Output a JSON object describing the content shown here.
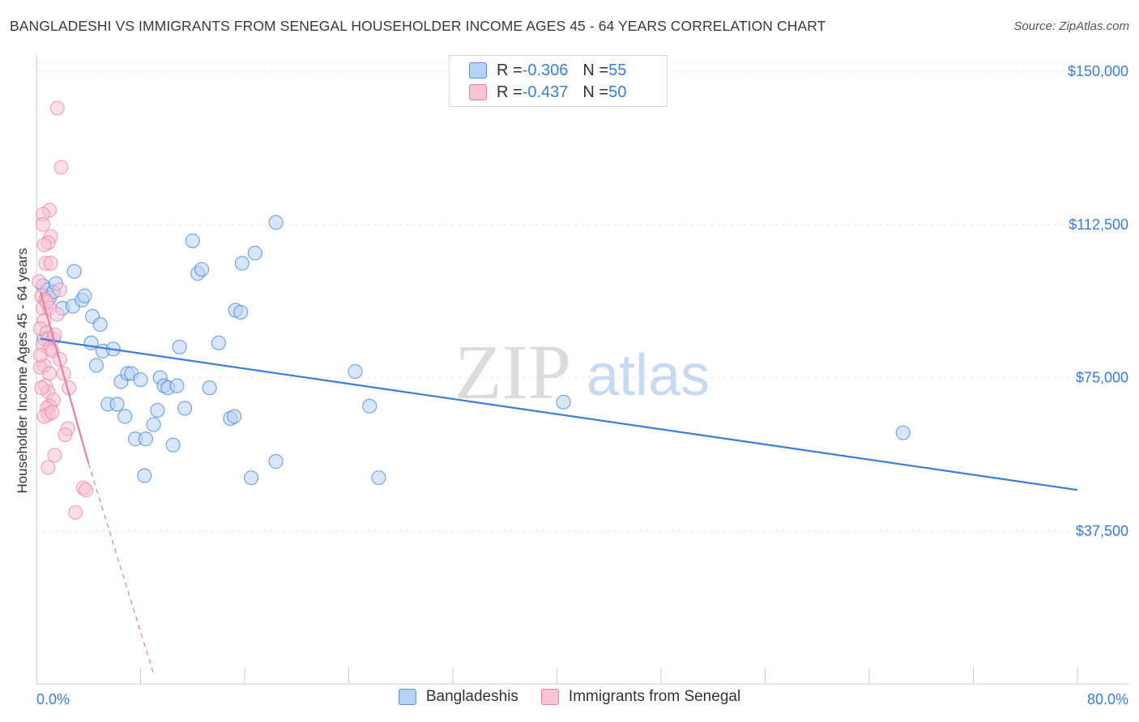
{
  "header": {
    "title": "BANGLADESHI VS IMMIGRANTS FROM SENEGAL HOUSEHOLDER INCOME AGES 45 - 64 YEARS CORRELATION CHART",
    "source": "Source: ZipAtlas.com"
  },
  "stats": [
    {
      "r_label": "R = ",
      "r_value": "-0.306",
      "n_label": "N = ",
      "n_value": "55",
      "color": "#5b8fe0",
      "fill": "#b8d2f5"
    },
    {
      "r_label": "R = ",
      "r_value": "-0.437",
      "n_label": "N = ",
      "n_value": "50",
      "color": "#e87fa3",
      "fill": "#f8c3d4"
    }
  ],
  "legend": [
    {
      "label": "Bangladeshis",
      "color": "#5b8fe0",
      "fill": "#b8d2f5"
    },
    {
      "label": "Immigrants from Senegal",
      "color": "#e87fa3",
      "fill": "#f8c3d4"
    }
  ],
  "watermark": {
    "zip": "ZIP",
    "atlas": "atlas"
  },
  "chart_data": {
    "type": "scatter",
    "ylabel": "Householder Income Ages 45 - 64 years",
    "xlim": [
      0,
      80
    ],
    "ylim": [
      0,
      152000
    ],
    "x_tick_labels": [
      {
        "x": 0,
        "label": "0.0%"
      },
      {
        "x": 80,
        "label": "80.0%"
      }
    ],
    "x_minor_ticks": [
      0,
      8,
      16,
      24,
      32,
      40,
      48,
      56,
      64,
      72,
      80
    ],
    "y_ticks": [
      {
        "y": 150000,
        "label": "$150,000"
      },
      {
        "y": 112500,
        "label": "$112,500"
      },
      {
        "y": 75000,
        "label": "$75,000"
      },
      {
        "y": 37500,
        "label": "$37,500"
      }
    ],
    "grid": true,
    "series": [
      {
        "name": "Bangladeshis",
        "color": "#3b7dd8",
        "fill": "#b8d2f5",
        "points": [
          [
            0.5,
            97500
          ],
          [
            0.8,
            96500
          ],
          [
            1.0,
            94500
          ],
          [
            1.3,
            96000
          ],
          [
            1.5,
            98000
          ],
          [
            2.0,
            92000
          ],
          [
            2.8,
            92500
          ],
          [
            2.9,
            101000
          ],
          [
            3.5,
            94000
          ],
          [
            3.7,
            95000
          ],
          [
            4.2,
            83500
          ],
          [
            4.3,
            90000
          ],
          [
            4.6,
            78000
          ],
          [
            4.9,
            88000
          ],
          [
            5.1,
            81500
          ],
          [
            5.5,
            68500
          ],
          [
            5.9,
            82000
          ],
          [
            6.2,
            68500
          ],
          [
            6.5,
            74000
          ],
          [
            6.8,
            65500
          ],
          [
            7.0,
            76000
          ],
          [
            7.3,
            76000
          ],
          [
            7.6,
            60000
          ],
          [
            8.0,
            74500
          ],
          [
            8.3,
            51000
          ],
          [
            8.4,
            60000
          ],
          [
            9.0,
            63500
          ],
          [
            9.3,
            67000
          ],
          [
            9.5,
            75000
          ],
          [
            9.8,
            73000
          ],
          [
            10.1,
            72500
          ],
          [
            10.5,
            58500
          ],
          [
            10.8,
            73000
          ],
          [
            11.0,
            82500
          ],
          [
            11.4,
            67500
          ],
          [
            12.0,
            108500
          ],
          [
            12.4,
            100500
          ],
          [
            12.7,
            101500
          ],
          [
            13.3,
            72500
          ],
          [
            14.0,
            83500
          ],
          [
            14.9,
            65000
          ],
          [
            15.2,
            65500
          ],
          [
            15.3,
            91500
          ],
          [
            15.7,
            91000
          ],
          [
            15.8,
            103000
          ],
          [
            16.5,
            50500
          ],
          [
            16.8,
            105500
          ],
          [
            18.4,
            113000
          ],
          [
            18.4,
            54500
          ],
          [
            24.5,
            76500
          ],
          [
            25.6,
            68000
          ],
          [
            26.3,
            50500
          ],
          [
            40.5,
            69000
          ],
          [
            66.6,
            61500
          ],
          [
            0.6,
            84500
          ]
        ],
        "trend": {
          "x_start": 0.3,
          "y_start": 84500,
          "x_end": 80,
          "y_end": 47500
        }
      },
      {
        "name": "Immigrants from Senegal",
        "color": "#e87fa3",
        "fill": "#f8c3d4",
        "points": [
          [
            1.6,
            141000
          ],
          [
            1.9,
            126500
          ],
          [
            1.0,
            116000
          ],
          [
            0.5,
            115000
          ],
          [
            0.5,
            112500
          ],
          [
            1.1,
            109500
          ],
          [
            0.9,
            108000
          ],
          [
            0.6,
            107500
          ],
          [
            0.7,
            103000
          ],
          [
            1.1,
            103000
          ],
          [
            0.4,
            95000
          ],
          [
            0.7,
            94000
          ],
          [
            0.5,
            92000
          ],
          [
            1.0,
            92000
          ],
          [
            1.6,
            90500
          ],
          [
            0.6,
            89000
          ],
          [
            0.3,
            87000
          ],
          [
            0.8,
            86000
          ],
          [
            0.9,
            84500
          ],
          [
            1.3,
            84500
          ],
          [
            0.5,
            83000
          ],
          [
            1.0,
            82000
          ],
          [
            1.2,
            81500
          ],
          [
            1.8,
            79500
          ],
          [
            0.6,
            78000
          ],
          [
            0.3,
            77500
          ],
          [
            1.0,
            76000
          ],
          [
            2.1,
            76000
          ],
          [
            0.7,
            73000
          ],
          [
            2.5,
            72500
          ],
          [
            0.9,
            71500
          ],
          [
            1.3,
            69500
          ],
          [
            1.0,
            68000
          ],
          [
            0.8,
            67500
          ],
          [
            0.9,
            66000
          ],
          [
            0.6,
            65500
          ],
          [
            2.4,
            62500
          ],
          [
            2.2,
            61000
          ],
          [
            1.4,
            56000
          ],
          [
            0.9,
            53000
          ],
          [
            3.6,
            48000
          ],
          [
            3.8,
            47500
          ],
          [
            3.0,
            42000
          ],
          [
            1.2,
            66500
          ],
          [
            0.4,
            72500
          ],
          [
            0.2,
            98500
          ],
          [
            0.8,
            93500
          ],
          [
            1.4,
            85500
          ],
          [
            0.3,
            80500
          ],
          [
            1.8,
            96500
          ]
        ],
        "trend": {
          "x_start": 0.3,
          "y_start": 96000,
          "x_end": 4.0,
          "y_end": 54000
        },
        "trend_extension": {
          "x_start": 4.0,
          "y_start": 54000,
          "x_end": 9.0,
          "y_end": 2500
        }
      }
    ]
  }
}
